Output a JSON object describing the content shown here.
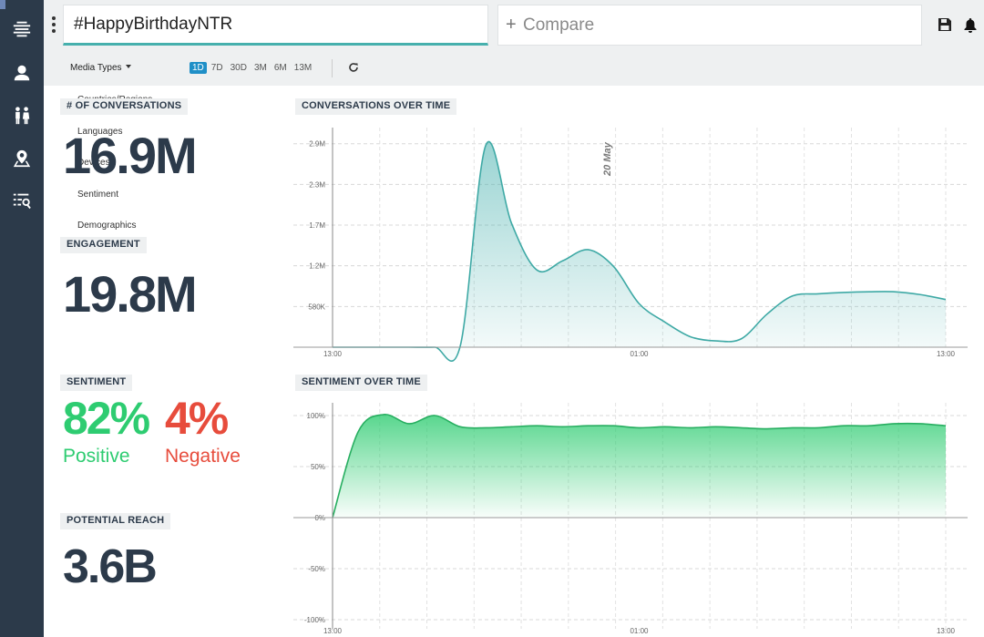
{
  "sidebar": {
    "icons": [
      "stream-icon",
      "user-icon",
      "people-icon",
      "map-pin-icon",
      "search-list-icon"
    ]
  },
  "header": {
    "search_value": "#HappyBirthdayNTR",
    "compare_placeholder": "Compare"
  },
  "filters": {
    "media_types_label": "Media Types",
    "ranges": [
      "1D",
      "7D",
      "30D",
      "3M",
      "6M",
      "13M"
    ],
    "active_range": "1D",
    "dropdown_items": [
      "Countries/Regions",
      "Languages",
      "Devices",
      "Sentiment",
      "Demographics"
    ]
  },
  "metrics": {
    "conversations_label": "# OF CONVERSATIONS",
    "conversations_value": "16.9M",
    "engagement_label": "ENGAGEMENT",
    "engagement_value": "19.8M",
    "sentiment_label": "SENTIMENT",
    "positive_value": "82%",
    "positive_label": "Positive",
    "negative_value": "4%",
    "negative_label": "Negative",
    "reach_label": "POTENTIAL REACH",
    "reach_value": "3.6B"
  },
  "colors": {
    "positive": "#2ecc71",
    "negative": "#e74c3c",
    "teal": "#46b0ad",
    "sidebar": "#2c3a4a"
  },
  "chart_data": [
    {
      "type": "area",
      "title": "CONVERSATIONS OVER TIME",
      "annotation": "20 May",
      "y_ticks": [
        "580K",
        "1.2M",
        "1.7M",
        "2.3M",
        "2.9M"
      ],
      "y_tick_values": [
        580000,
        1160000,
        1740000,
        2320000,
        2900000
      ],
      "x_ticks": [
        "13:00",
        "01:00",
        "13:00"
      ],
      "ylim": [
        0,
        3000000
      ],
      "x": [
        0,
        1,
        2,
        3,
        4,
        5,
        6,
        7,
        8,
        9,
        10,
        11,
        12,
        13,
        14,
        15,
        16,
        17,
        18,
        19,
        20,
        21,
        22,
        23,
        24
      ],
      "values": [
        0,
        0,
        0,
        0,
        0,
        20000,
        2880000,
        1770000,
        1100000,
        1230000,
        1390000,
        1150000,
        620000,
        360000,
        150000,
        90000,
        120000,
        470000,
        730000,
        760000,
        780000,
        790000,
        790000,
        750000,
        680000
      ]
    },
    {
      "type": "area",
      "title": "SENTIMENT OVER TIME",
      "y_ticks": [
        "100%",
        "50%",
        "0%",
        "-50%",
        "-100%"
      ],
      "y_tick_values": [
        100,
        50,
        0,
        -50,
        -100
      ],
      "x_ticks": [
        "13:00",
        "01:00",
        "13:00"
      ],
      "ylim": [
        -100,
        100
      ],
      "x": [
        0,
        1,
        2,
        3,
        4,
        5,
        6,
        7,
        8,
        9,
        10,
        11,
        12,
        13,
        14,
        15,
        16,
        17,
        18,
        19,
        20,
        21,
        22,
        23,
        24
      ],
      "values": [
        0,
        84,
        101,
        92,
        100,
        89,
        88,
        89,
        90,
        89,
        90,
        90,
        88,
        89,
        88,
        89,
        88,
        87,
        88,
        88,
        90,
        90,
        92,
        92,
        90
      ]
    }
  ]
}
